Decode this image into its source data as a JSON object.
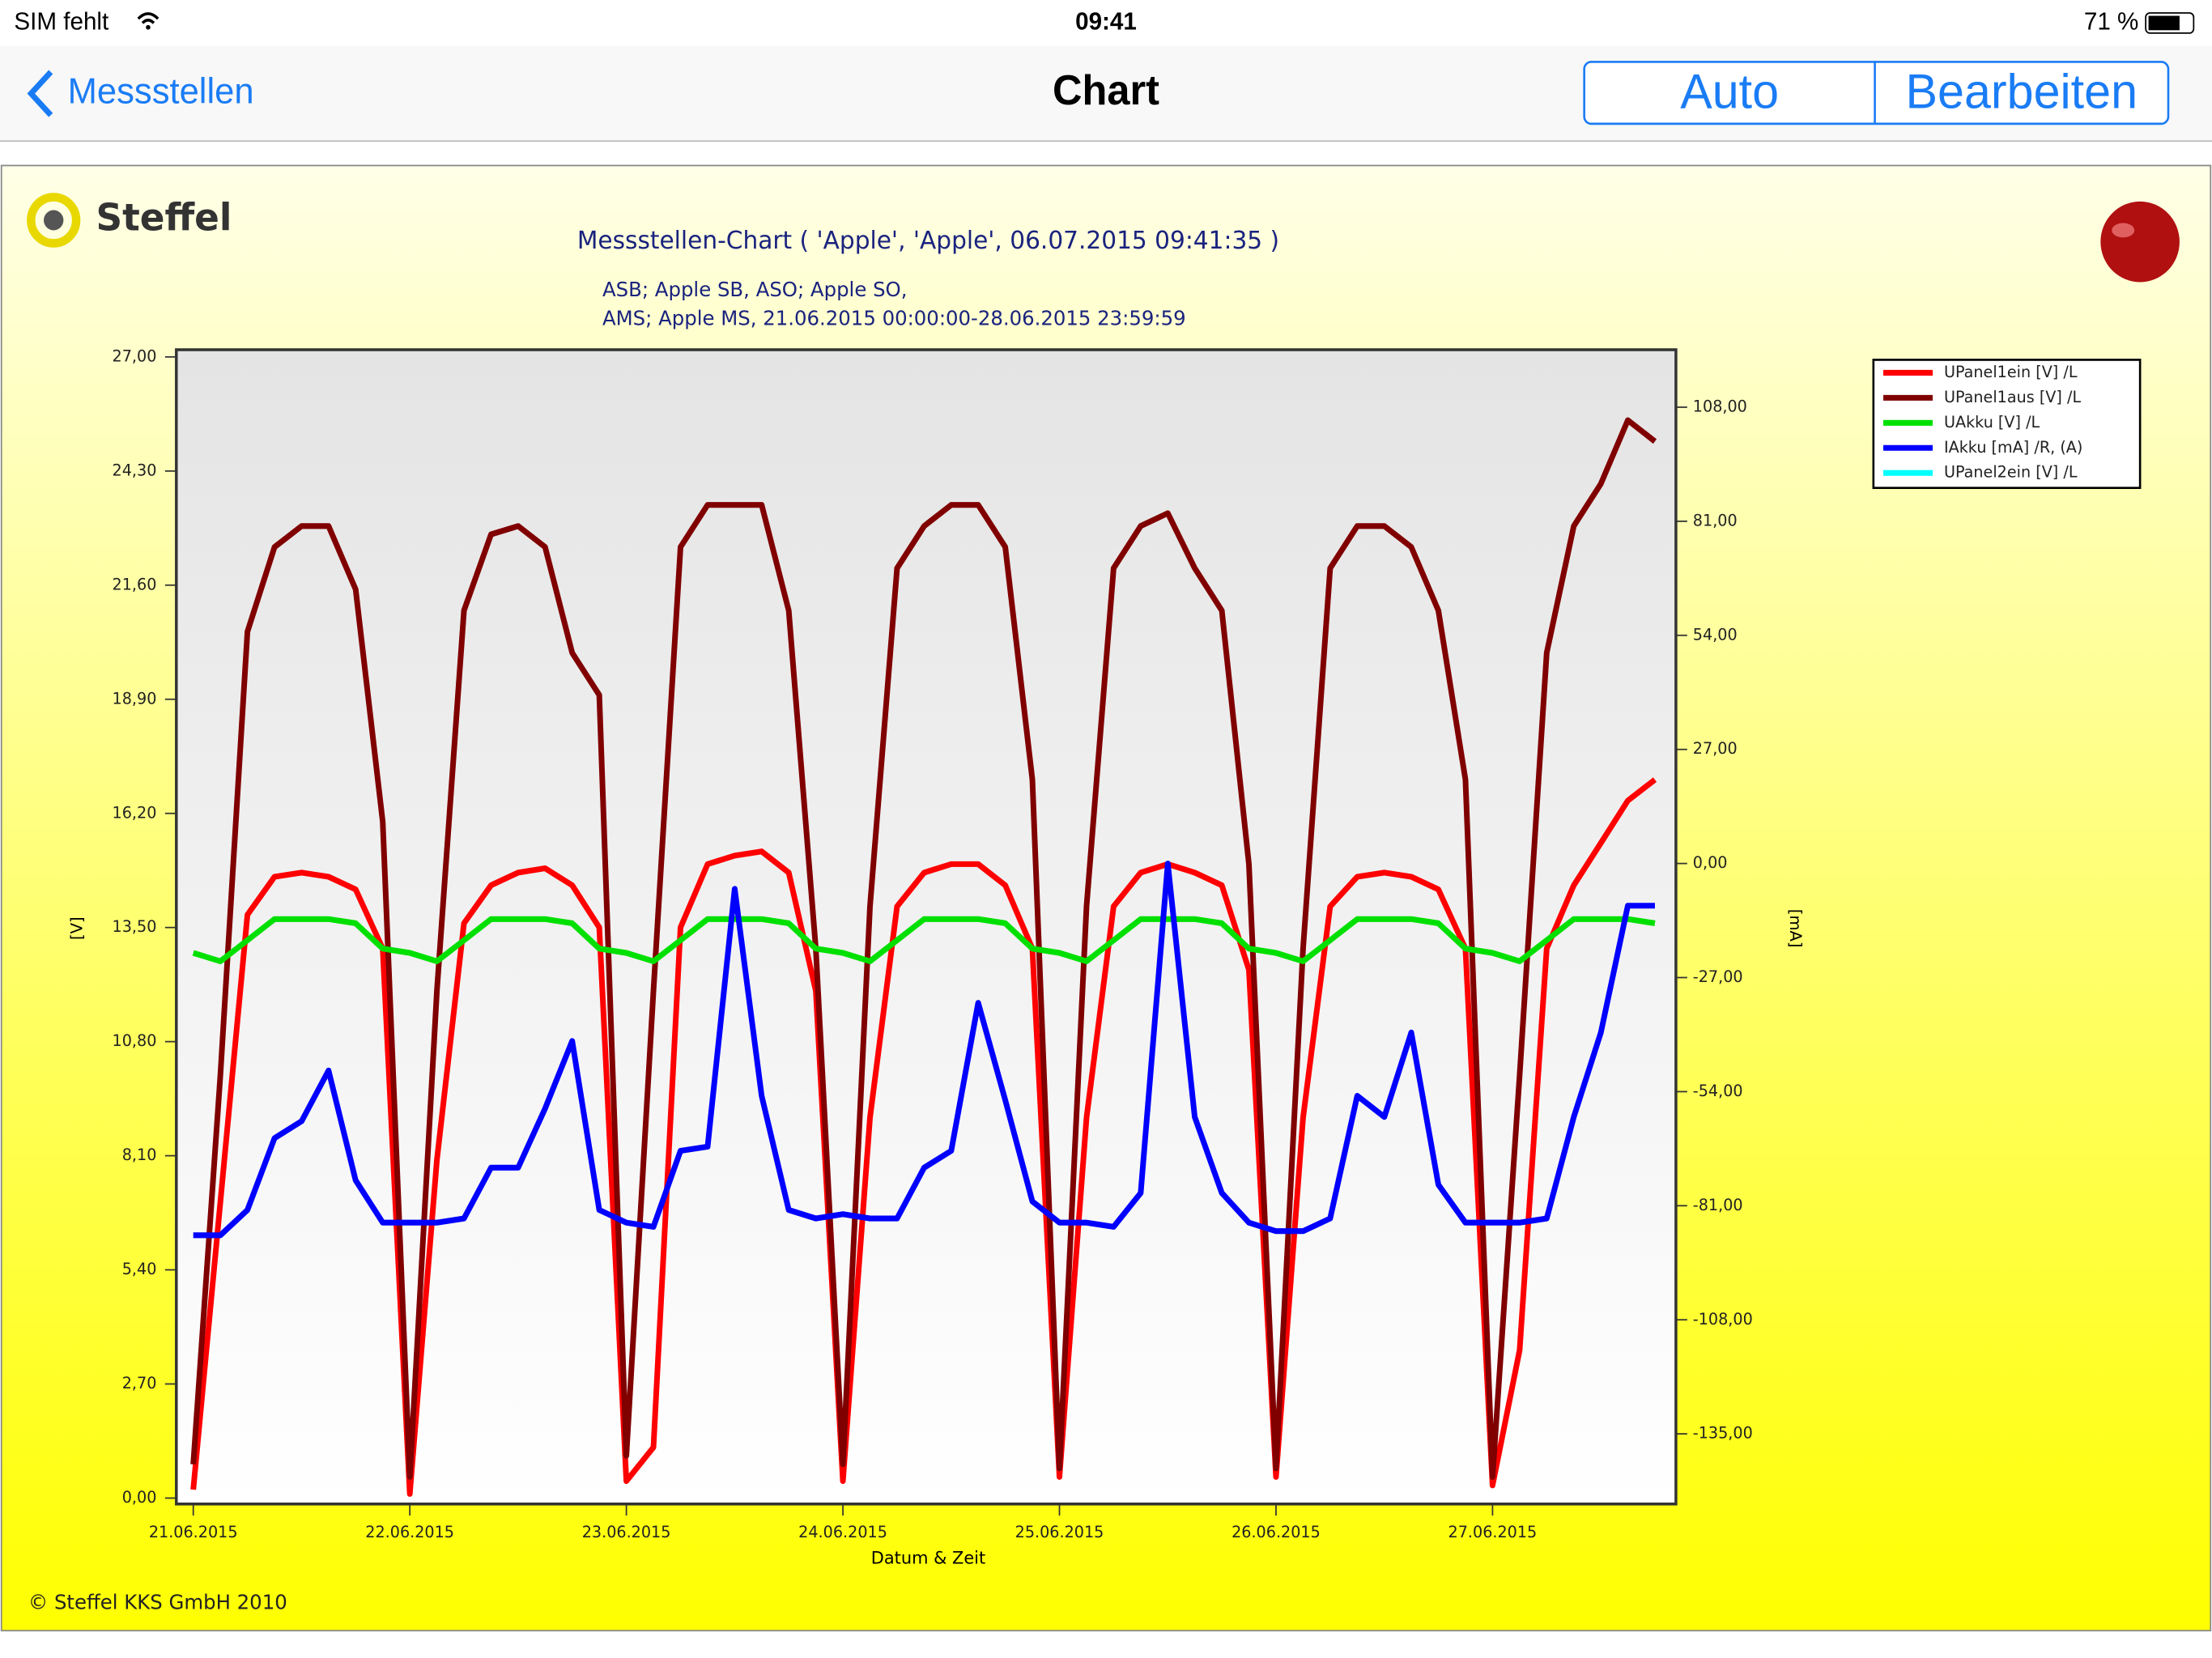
{
  "status_bar": {
    "carrier": "SIM fehlt",
    "time": "09:41",
    "battery": "71 %"
  },
  "nav_bar": {
    "back": "Messstellen",
    "title": "Chart",
    "buttons": [
      "Auto",
      "Bearbeiten"
    ]
  },
  "logo": "Steffel",
  "footer": "© Steffel KKS GmbH 2010",
  "chart_data": {
    "type": "line",
    "title": "Messstellen-Chart ( 'Apple',  'Apple',  06.07.2015 09:41:35 )",
    "subtitle": [
      "ASB; Apple SB, ASO; Apple SO,",
      "AMS; Apple MS, 21.06.2015 00:00:00-28.06.2015 23:59:59"
    ],
    "x_label": "Datum & Zeit",
    "y_label": "[V]",
    "y2_label": "[mA]",
    "categories": [
      "21.06.2015",
      null,
      null,
      null,
      null,
      null,
      null,
      null,
      "22.06.2015",
      null,
      null,
      null,
      null,
      null,
      null,
      null,
      "23.06.2015",
      null,
      null,
      null,
      null,
      null,
      null,
      null,
      "24.06.2015",
      null,
      null,
      null,
      null,
      null,
      null,
      null,
      "25.06.2015",
      null,
      null,
      null,
      null,
      null,
      null,
      null,
      "26.06.2015",
      null,
      null,
      null,
      null,
      null,
      null,
      null,
      "27.06.2015",
      null,
      null,
      null,
      null,
      null,
      null
    ],
    "ylim": [
      -0.14,
      27.17
    ],
    "yticks": [
      {
        "value": 0,
        "label": "0,00"
      },
      {
        "value": 2.7,
        "label": "2,70"
      },
      {
        "value": 5.4,
        "label": "5,40"
      },
      {
        "value": 8.1,
        "label": "8,10"
      },
      {
        "value": 10.8,
        "label": "10,80"
      },
      {
        "value": 13.5,
        "label": "13,50"
      },
      {
        "value": 16.2,
        "label": "16,20"
      },
      {
        "value": 18.9,
        "label": "18,90"
      },
      {
        "value": 21.6,
        "label": "21,60"
      },
      {
        "value": 24.3,
        "label": "24,30"
      },
      {
        "value": 27,
        "label": "27,00"
      }
    ],
    "y2lim": [
      -151.6,
      121.6
    ],
    "y2ticks": [
      {
        "value": 108,
        "label": "108,00"
      },
      {
        "value": 81,
        "label": "81,00"
      },
      {
        "value": 54,
        "label": "54,00"
      },
      {
        "value": 27,
        "label": "27,00"
      },
      {
        "value": 0,
        "label": "0,00"
      },
      {
        "value": -27,
        "label": "-27,00"
      },
      {
        "value": -54,
        "label": "-54,00"
      },
      {
        "value": -81,
        "label": "-81,00"
      },
      {
        "value": -108,
        "label": "-108,00"
      },
      {
        "value": -135,
        "label": "-135,00"
      }
    ],
    "legend": "upper right",
    "series": [
      {
        "name": "UPanel1ein [V] /L",
        "color": "#ff0000",
        "values": [
          0.2,
          7,
          13.8,
          14.7,
          14.8,
          14.7,
          14.4,
          13,
          0.1,
          8,
          13.6,
          14.5,
          14.8,
          14.9,
          14.5,
          13.5,
          0.4,
          1.2,
          13.5,
          15,
          15.2,
          15.3,
          14.8,
          12,
          0.4,
          9,
          14,
          14.8,
          15,
          15,
          14.5,
          13,
          0.5,
          9,
          14,
          14.8,
          15,
          14.8,
          14.5,
          12.5,
          0.5,
          9,
          14,
          14.7,
          14.8,
          14.7,
          14.4,
          13,
          0.3,
          3.5,
          13,
          14.5,
          15.5,
          16.5,
          17
        ]
      },
      {
        "name": "UPanel1aus [V] /L",
        "color": "#800000",
        "values": [
          0.8,
          10,
          20.5,
          22.5,
          23,
          23,
          21.5,
          16,
          0.5,
          12,
          21,
          22.8,
          23,
          22.5,
          20,
          19,
          1,
          12,
          22.5,
          23.5,
          23.5,
          23.5,
          21,
          13,
          0.8,
          14,
          22,
          23,
          23.5,
          23.5,
          22.5,
          17,
          0.7,
          14,
          22,
          23,
          23.3,
          22,
          21,
          15,
          0.7,
          13,
          22,
          23,
          23,
          22.5,
          21,
          17,
          0.5,
          10,
          20,
          23,
          24,
          25.5,
          25
        ]
      },
      {
        "name": "UAkku [V] /L",
        "color": "#00e000",
        "values": [
          12.9,
          12.7,
          13.2,
          13.7,
          13.7,
          13.7,
          13.6,
          13,
          12.9,
          12.7,
          13.2,
          13.7,
          13.7,
          13.7,
          13.6,
          13,
          12.9,
          12.7,
          13.2,
          13.7,
          13.7,
          13.7,
          13.6,
          13,
          12.9,
          12.7,
          13.2,
          13.7,
          13.7,
          13.7,
          13.6,
          13,
          12.9,
          12.7,
          13.2,
          13.7,
          13.7,
          13.7,
          13.6,
          13,
          12.9,
          12.7,
          13.2,
          13.7,
          13.7,
          13.7,
          13.6,
          13,
          12.9,
          12.7,
          13.2,
          13.7,
          13.7,
          13.7,
          13.6
        ]
      },
      {
        "name": "IAkku [mA] /R, (A)",
        "color": "#0000ff",
        "axis": "y2",
        "values": [
          -88,
          -88,
          -82,
          -65,
          -61,
          -49,
          -75,
          -85,
          -85,
          -85,
          -84,
          -72,
          -72,
          -58,
          -42,
          -82,
          -85,
          -86,
          -68,
          -67,
          -6,
          -55,
          -82,
          -84,
          -83,
          -84,
          -84,
          -72,
          -68,
          -33,
          -56,
          -80,
          -85,
          -85,
          -86,
          -78,
          0,
          -60,
          -78,
          -85,
          -87,
          -87,
          -84,
          -55,
          -60,
          -40,
          -76,
          -85,
          -85,
          -85,
          -84,
          -60,
          -40,
          -10,
          -10
        ]
      },
      {
        "name": "UPanel2ein [V] /L",
        "color": "#00ffff",
        "values": [
          null,
          null,
          null,
          null,
          null,
          null,
          null,
          null,
          null,
          null,
          null,
          null,
          null,
          null,
          null,
          null,
          null,
          null,
          null,
          null,
          null,
          null,
          null,
          null,
          null,
          null,
          null,
          null,
          null,
          null,
          null,
          null,
          null,
          null,
          null,
          null,
          null,
          null,
          null,
          null,
          null,
          null,
          null,
          null,
          null,
          null,
          null,
          null,
          null,
          null,
          null,
          null,
          null,
          null,
          null
        ]
      }
    ]
  }
}
